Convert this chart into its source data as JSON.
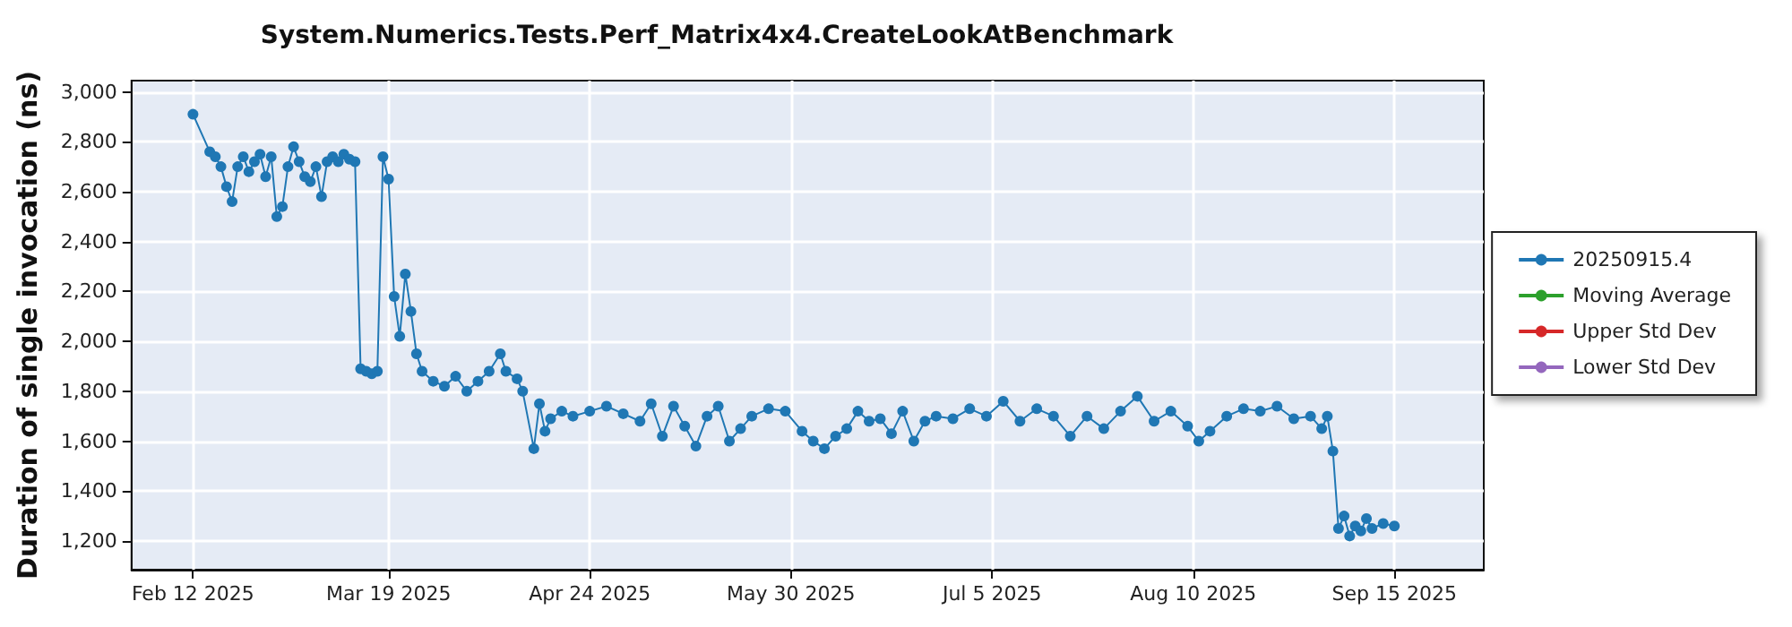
{
  "chart_data": {
    "type": "line",
    "title": "System.Numerics.Tests.Perf_Matrix4x4.CreateLookAtBenchmark",
    "ylabel": "Duration of single invocation (ns)",
    "series": [
      {
        "name": "20250915.4",
        "color": "#1f77b4",
        "x": [
          "2025-02-12",
          "2025-02-15",
          "2025-02-16",
          "2025-02-17",
          "2025-02-18",
          "2025-02-19",
          "2025-02-20",
          "2025-02-21",
          "2025-02-22",
          "2025-02-23",
          "2025-02-24",
          "2025-02-25",
          "2025-02-26",
          "2025-02-27",
          "2025-02-28",
          "2025-03-01",
          "2025-03-02",
          "2025-03-03",
          "2025-03-04",
          "2025-03-05",
          "2025-03-06",
          "2025-03-07",
          "2025-03-08",
          "2025-03-09",
          "2025-03-10",
          "2025-03-11",
          "2025-03-12",
          "2025-03-13",
          "2025-03-14",
          "2025-03-15",
          "2025-03-16",
          "2025-03-17",
          "2025-03-18",
          "2025-03-19",
          "2025-03-20",
          "2025-03-21",
          "2025-03-22",
          "2025-03-23",
          "2025-03-24",
          "2025-03-25",
          "2025-03-27",
          "2025-03-29",
          "2025-03-31",
          "2025-04-02",
          "2025-04-04",
          "2025-04-06",
          "2025-04-08",
          "2025-04-09",
          "2025-04-11",
          "2025-04-12",
          "2025-04-14",
          "2025-04-15",
          "2025-04-16",
          "2025-04-17",
          "2025-04-19",
          "2025-04-21",
          "2025-04-24",
          "2025-04-27",
          "2025-04-30",
          "2025-05-03",
          "2025-05-05",
          "2025-05-07",
          "2025-05-09",
          "2025-05-11",
          "2025-05-13",
          "2025-05-15",
          "2025-05-17",
          "2025-05-19",
          "2025-05-21",
          "2025-05-23",
          "2025-05-26",
          "2025-05-29",
          "2025-06-01",
          "2025-06-03",
          "2025-06-05",
          "2025-06-07",
          "2025-06-09",
          "2025-06-11",
          "2025-06-13",
          "2025-06-15",
          "2025-06-17",
          "2025-06-19",
          "2025-06-21",
          "2025-06-23",
          "2025-06-25",
          "2025-06-28",
          "2025-07-01",
          "2025-07-04",
          "2025-07-07",
          "2025-07-10",
          "2025-07-13",
          "2025-07-16",
          "2025-07-19",
          "2025-07-22",
          "2025-07-25",
          "2025-07-28",
          "2025-07-31",
          "2025-08-03",
          "2025-08-06",
          "2025-08-09",
          "2025-08-11",
          "2025-08-13",
          "2025-08-16",
          "2025-08-19",
          "2025-08-22",
          "2025-08-25",
          "2025-08-28",
          "2025-08-31",
          "2025-09-02",
          "2025-09-03",
          "2025-09-04",
          "2025-09-05",
          "2025-09-06",
          "2025-09-07",
          "2025-09-08",
          "2025-09-09",
          "2025-09-10",
          "2025-09-11",
          "2025-09-13",
          "2025-09-15"
        ],
        "values": [
          2910,
          2760,
          2740,
          2700,
          2620,
          2560,
          2700,
          2740,
          2680,
          2720,
          2750,
          2660,
          2740,
          2500,
          2540,
          2700,
          2780,
          2720,
          2660,
          2640,
          2700,
          2580,
          2720,
          2740,
          2720,
          2750,
          2730,
          2720,
          1890,
          1880,
          1870,
          1880,
          2740,
          2650,
          2180,
          2020,
          2270,
          2120,
          1950,
          1880,
          1840,
          1820,
          1860,
          1800,
          1840,
          1880,
          1950,
          1880,
          1850,
          1800,
          1570,
          1750,
          1640,
          1690,
          1720,
          1700,
          1720,
          1740,
          1710,
          1680,
          1750,
          1620,
          1740,
          1660,
          1580,
          1700,
          1740,
          1600,
          1650,
          1700,
          1730,
          1720,
          1640,
          1600,
          1570,
          1620,
          1650,
          1720,
          1680,
          1690,
          1630,
          1720,
          1600,
          1680,
          1700,
          1690,
          1730,
          1700,
          1760,
          1680,
          1730,
          1700,
          1620,
          1700,
          1650,
          1720,
          1780,
          1680,
          1720,
          1660,
          1600,
          1640,
          1700,
          1730,
          1720,
          1740,
          1690,
          1700,
          1650,
          1700,
          1560,
          1250,
          1300,
          1220,
          1260,
          1240,
          1290,
          1250,
          1270,
          1260
        ]
      },
      {
        "name": "Moving Average",
        "color": "#2ca02c"
      },
      {
        "name": "Upper Std Dev",
        "color": "#d62728"
      },
      {
        "name": "Lower Std Dev",
        "color": "#9467bd"
      }
    ],
    "xlim": [
      "2025-02-01",
      "2025-10-01"
    ],
    "xticks": [
      {
        "value": "2025-02-12",
        "label": "Feb 12 2025"
      },
      {
        "value": "2025-03-19",
        "label": "Mar 19 2025"
      },
      {
        "value": "2025-04-24",
        "label": "Apr 24 2025"
      },
      {
        "value": "2025-05-30",
        "label": "May 30 2025"
      },
      {
        "value": "2025-07-05",
        "label": "Jul 5 2025"
      },
      {
        "value": "2025-08-10",
        "label": "Aug 10 2025"
      },
      {
        "value": "2025-09-15",
        "label": "Sep 15 2025"
      }
    ],
    "ylim": [
      1085,
      3045
    ],
    "yticks": [
      {
        "value": 1200,
        "label": "1,200"
      },
      {
        "value": 1400,
        "label": "1,400"
      },
      {
        "value": 1600,
        "label": "1,600"
      },
      {
        "value": 1800,
        "label": "1,800"
      },
      {
        "value": 2000,
        "label": "2,000"
      },
      {
        "value": 2200,
        "label": "2,200"
      },
      {
        "value": 2400,
        "label": "2,400"
      },
      {
        "value": 2600,
        "label": "2,600"
      },
      {
        "value": 2800,
        "label": "2,800"
      },
      {
        "value": 3000,
        "label": "3,000"
      }
    ],
    "grid": true,
    "legend": "right",
    "marker": "circle",
    "line_style": "solid"
  }
}
